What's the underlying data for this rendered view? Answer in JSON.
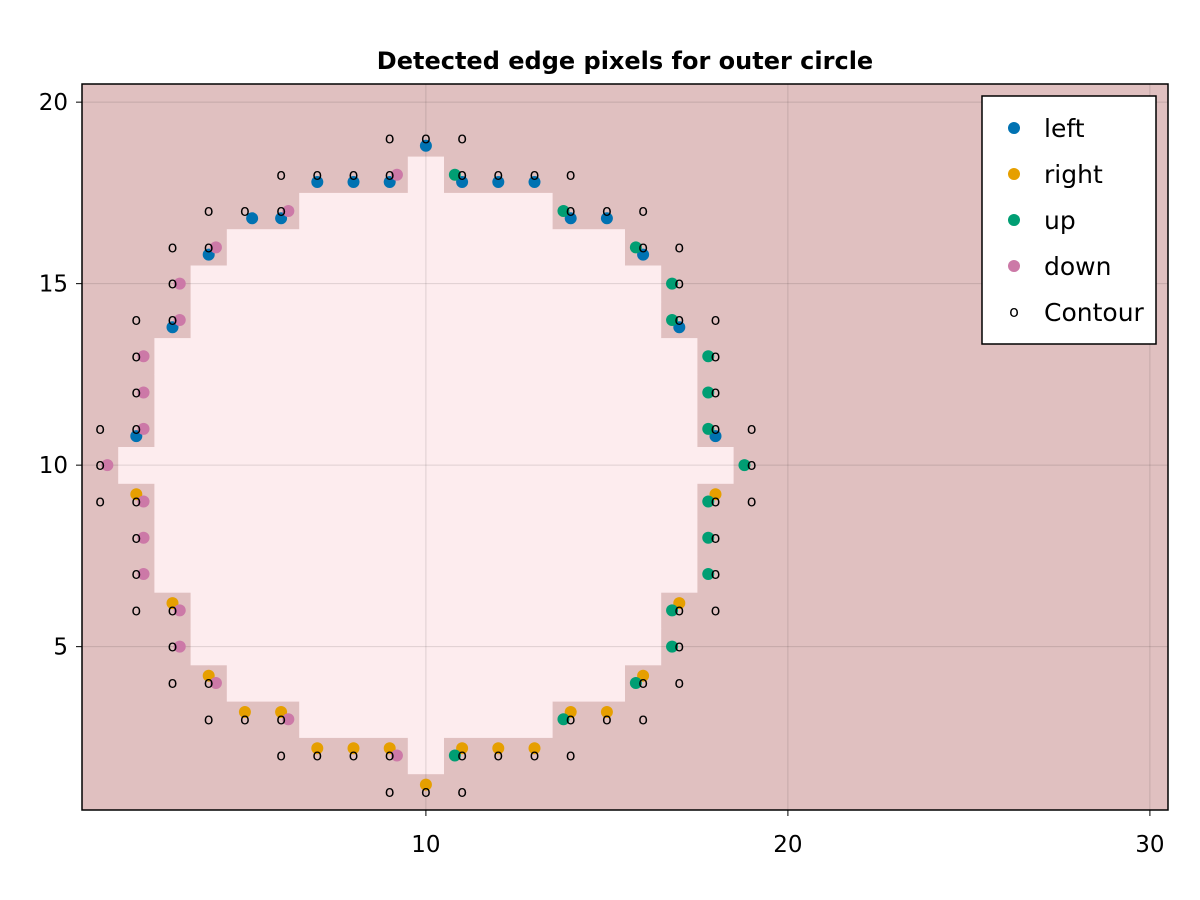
{
  "chart_data": {
    "type": "scatter",
    "title": "Detected edge pixels for outer circle",
    "xlabel": "",
    "ylabel": "",
    "xlim": [
      0.5,
      30.5
    ],
    "ylim": [
      0.5,
      20.5
    ],
    "x_ticks": [
      10,
      20,
      30
    ],
    "y_ticks": [
      5,
      10,
      15,
      20
    ],
    "grid": true,
    "legend_position": "top-right",
    "background": {
      "type": "heatmap",
      "colors": {
        "outside": "#e0c0c0",
        "inside": "#fdecee"
      },
      "inside_rows": [
        {
          "y": 2,
          "x": [
            10,
            10
          ]
        },
        {
          "y": 3,
          "x": [
            7,
            13
          ]
        },
        {
          "y": 4,
          "x": [
            5,
            15
          ]
        },
        {
          "y": 5,
          "x": [
            4,
            16
          ]
        },
        {
          "y": 6,
          "x": [
            4,
            16
          ]
        },
        {
          "y": 7,
          "x": [
            3,
            17
          ]
        },
        {
          "y": 8,
          "x": [
            3,
            17
          ]
        },
        {
          "y": 9,
          "x": [
            3,
            17
          ]
        },
        {
          "y": 10,
          "x": [
            2,
            18
          ]
        },
        {
          "y": 11,
          "x": [
            3,
            17
          ]
        },
        {
          "y": 12,
          "x": [
            3,
            17
          ]
        },
        {
          "y": 13,
          "x": [
            3,
            17
          ]
        },
        {
          "y": 14,
          "x": [
            4,
            16
          ]
        },
        {
          "y": 15,
          "x": [
            4,
            16
          ]
        },
        {
          "y": 16,
          "x": [
            5,
            15
          ]
        },
        {
          "y": 17,
          "x": [
            7,
            13
          ]
        },
        {
          "y": 18,
          "x": [
            10,
            10
          ]
        }
      ]
    },
    "series": [
      {
        "name": "left",
        "marker": "circle",
        "color": "#0072b2",
        "points": [
          [
            10,
            18.8
          ],
          [
            11,
            17.8
          ],
          [
            12,
            17.8
          ],
          [
            13,
            17.8
          ],
          [
            7,
            17.8
          ],
          [
            8,
            17.8
          ],
          [
            9,
            17.8
          ],
          [
            14,
            16.8
          ],
          [
            15,
            16.8
          ],
          [
            5.2,
            16.8
          ],
          [
            6,
            16.8
          ],
          [
            4,
            15.8
          ],
          [
            16,
            15.8
          ],
          [
            3,
            13.8
          ],
          [
            17,
            13.8
          ],
          [
            2,
            10.8
          ],
          [
            18,
            10.8
          ]
        ]
      },
      {
        "name": "right",
        "marker": "circle",
        "color": "#e69f00",
        "points": [
          [
            10,
            1.2
          ],
          [
            7,
            2.2
          ],
          [
            8,
            2.2
          ],
          [
            9,
            2.2
          ],
          [
            11,
            2.2
          ],
          [
            12,
            2.2
          ],
          [
            13,
            2.2
          ],
          [
            5,
            3.2
          ],
          [
            6,
            3.2
          ],
          [
            14,
            3.2
          ],
          [
            15,
            3.2
          ],
          [
            4,
            4.2
          ],
          [
            16,
            4.2
          ],
          [
            3,
            6.2
          ],
          [
            17,
            6.2
          ],
          [
            2,
            9.2
          ],
          [
            18,
            9.2
          ]
        ]
      },
      {
        "name": "up",
        "marker": "circle",
        "color": "#009e73",
        "points": [
          [
            10.8,
            18
          ],
          [
            13.8,
            17
          ],
          [
            15.8,
            16
          ],
          [
            16.8,
            15
          ],
          [
            16.8,
            14
          ],
          [
            17.8,
            13
          ],
          [
            17.8,
            12
          ],
          [
            17.8,
            11
          ],
          [
            18.8,
            10
          ],
          [
            17.8,
            9
          ],
          [
            17.8,
            8
          ],
          [
            17.8,
            7
          ],
          [
            16.8,
            6
          ],
          [
            16.8,
            5
          ],
          [
            15.8,
            4
          ],
          [
            13.8,
            3
          ],
          [
            10.8,
            2
          ]
        ]
      },
      {
        "name": "down",
        "marker": "circle",
        "color": "#cc79a7",
        "points": [
          [
            9.2,
            18
          ],
          [
            6.2,
            17
          ],
          [
            4.2,
            16
          ],
          [
            3.2,
            15
          ],
          [
            3.2,
            14
          ],
          [
            2.2,
            13
          ],
          [
            2.2,
            12
          ],
          [
            2.2,
            11
          ],
          [
            1.2,
            10
          ],
          [
            2.2,
            9
          ],
          [
            2.2,
            8
          ],
          [
            2.2,
            7
          ],
          [
            3.2,
            6
          ],
          [
            3.2,
            5
          ],
          [
            4.2,
            4
          ],
          [
            6.2,
            3
          ],
          [
            9.2,
            2
          ]
        ]
      },
      {
        "name": "Contour",
        "marker": "o",
        "color": "#000000",
        "points": [
          [
            9,
            19
          ],
          [
            10,
            19
          ],
          [
            11,
            19
          ],
          [
            6,
            18
          ],
          [
            7,
            18
          ],
          [
            8,
            18
          ],
          [
            9,
            18
          ],
          [
            11,
            18
          ],
          [
            12,
            18
          ],
          [
            13,
            18
          ],
          [
            14,
            18
          ],
          [
            4,
            17
          ],
          [
            5,
            17
          ],
          [
            6,
            17
          ],
          [
            14,
            17
          ],
          [
            15,
            17
          ],
          [
            16,
            17
          ],
          [
            3,
            16
          ],
          [
            4,
            16
          ],
          [
            16,
            16
          ],
          [
            17,
            16
          ],
          [
            3,
            15
          ],
          [
            17,
            15
          ],
          [
            2,
            14
          ],
          [
            3,
            14
          ],
          [
            17,
            14
          ],
          [
            18,
            14
          ],
          [
            2,
            13
          ],
          [
            18,
            13
          ],
          [
            2,
            12
          ],
          [
            18,
            12
          ],
          [
            1,
            11
          ],
          [
            2,
            11
          ],
          [
            18,
            11
          ],
          [
            19,
            11
          ],
          [
            1,
            10
          ],
          [
            19,
            10
          ],
          [
            1,
            9
          ],
          [
            2,
            9
          ],
          [
            18,
            9
          ],
          [
            19,
            9
          ],
          [
            2,
            8
          ],
          [
            18,
            8
          ],
          [
            2,
            7
          ],
          [
            18,
            7
          ],
          [
            2,
            6
          ],
          [
            3,
            6
          ],
          [
            17,
            6
          ],
          [
            18,
            6
          ],
          [
            3,
            5
          ],
          [
            17,
            5
          ],
          [
            3,
            4
          ],
          [
            4,
            4
          ],
          [
            16,
            4
          ],
          [
            17,
            4
          ],
          [
            4,
            3
          ],
          [
            5,
            3
          ],
          [
            6,
            3
          ],
          [
            14,
            3
          ],
          [
            15,
            3
          ],
          [
            16,
            3
          ],
          [
            6,
            2
          ],
          [
            7,
            2
          ],
          [
            8,
            2
          ],
          [
            9,
            2
          ],
          [
            11,
            2
          ],
          [
            12,
            2
          ],
          [
            13,
            2
          ],
          [
            14,
            2
          ],
          [
            9,
            1
          ],
          [
            10,
            1
          ],
          [
            11,
            1
          ]
        ]
      }
    ]
  }
}
